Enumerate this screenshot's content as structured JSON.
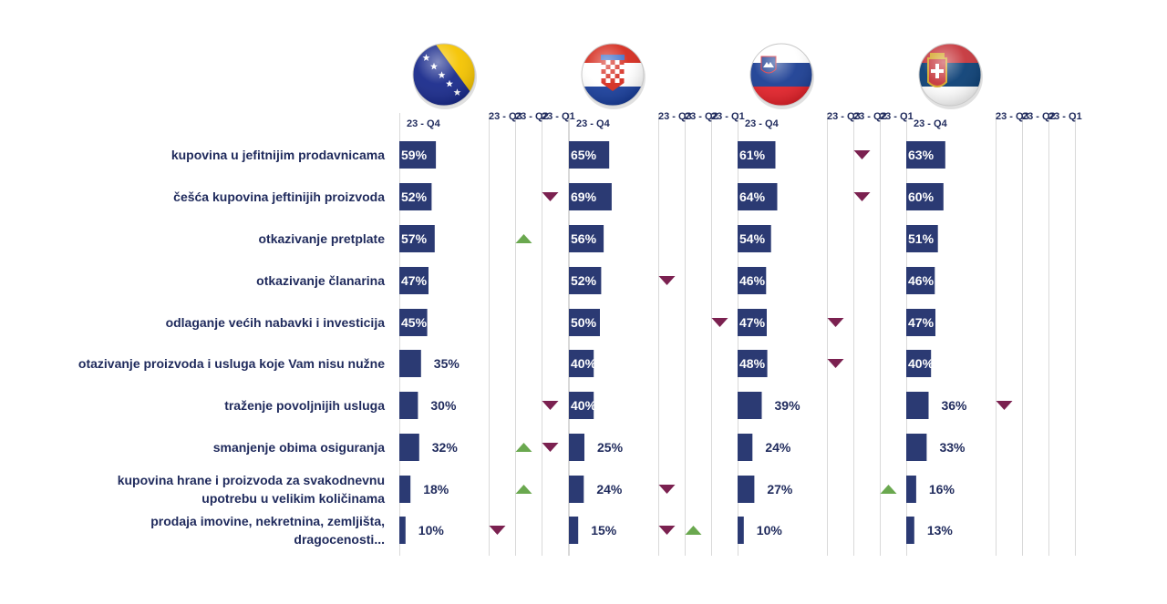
{
  "colors": {
    "bar": "#2b3a73",
    "label": "#1f2a5c",
    "up": "#6aa84f",
    "down": "#7b2150",
    "gridline": "#d9d9d9"
  },
  "chart_data": {
    "type": "bar",
    "orientation": "horizontal",
    "unit": "%",
    "categories": [
      "kupovina u jefitnijim prodavnicama",
      "češća kupovina jeftinijih proizvoda",
      "otkazivanje pretplate",
      "otkazivanje članarina",
      "odlaganje većih nabavki i investicija",
      "otazivanje proizvoda i usluga koje Vam nisu nužne",
      "traženje povoljnijih usluga",
      "smanjenje obima osiguranja",
      "kupovina hrane i proizvoda za svakodnevnu upotrebu u velikim količinama",
      "prodaja imovine, nekretnina, zemljišta, dragocenosti..."
    ],
    "category_lines": [
      [
        "kupovina u jefitnijim prodavnicama"
      ],
      [
        "češća kupovina jeftinijih proizvoda"
      ],
      [
        "otkazivanje pretplate"
      ],
      [
        "otkazivanje članarina"
      ],
      [
        "odlaganje većih nabavki i investicija"
      ],
      [
        "otazivanje proizvoda i usluga koje Vam nisu nužne"
      ],
      [
        "traženje povoljnijih usluga"
      ],
      [
        "smanjenje obima osiguranja"
      ],
      [
        "kupovina hrane i proizvoda za svakodnevnu",
        "upotrebu u velikim količinama"
      ],
      [
        "prodaja imovine, nekretnina, zemljišta,",
        "dragocenosti..."
      ]
    ],
    "comparison_headers": [
      "23 - Q3",
      "23 - Q2",
      "23 - Q1"
    ],
    "panels": [
      {
        "flag": "bosnia-herzegovina-flag",
        "header": "23 - Q4",
        "values": [
          59,
          52,
          57,
          47,
          45,
          35,
          30,
          32,
          18,
          10
        ],
        "arrows": [
          {
            "row": 1,
            "col": 2,
            "dir": "down"
          },
          {
            "row": 2,
            "col": 1,
            "dir": "up"
          },
          {
            "row": 6,
            "col": 2,
            "dir": "down"
          },
          {
            "row": 7,
            "col": 1,
            "dir": "up"
          },
          {
            "row": 7,
            "col": 2,
            "dir": "down"
          },
          {
            "row": 8,
            "col": 1,
            "dir": "up"
          },
          {
            "row": 9,
            "col": 0,
            "dir": "down"
          }
        ]
      },
      {
        "flag": "croatia-flag",
        "header": "23 - Q4",
        "values": [
          65,
          69,
          56,
          52,
          50,
          40,
          40,
          25,
          24,
          15
        ],
        "arrows": [
          {
            "row": 3,
            "col": 0,
            "dir": "down"
          },
          {
            "row": 4,
            "col": 2,
            "dir": "down"
          },
          {
            "row": 8,
            "col": 0,
            "dir": "down"
          },
          {
            "row": 9,
            "col": 0,
            "dir": "down"
          },
          {
            "row": 9,
            "col": 1,
            "dir": "up"
          }
        ]
      },
      {
        "flag": "slovenia-flag",
        "header": "23 - Q4",
        "values": [
          61,
          64,
          54,
          46,
          47,
          48,
          39,
          24,
          27,
          10
        ],
        "arrows": [
          {
            "row": 0,
            "col": 1,
            "dir": "down"
          },
          {
            "row": 1,
            "col": 1,
            "dir": "down"
          },
          {
            "row": 4,
            "col": 0,
            "dir": "down"
          },
          {
            "row": 5,
            "col": 0,
            "dir": "down"
          },
          {
            "row": 8,
            "col": 2,
            "dir": "up"
          }
        ]
      },
      {
        "flag": "serbia-flag",
        "header": "23 - Q4",
        "values": [
          63,
          60,
          51,
          46,
          47,
          40,
          36,
          33,
          16,
          13
        ],
        "arrows": [
          {
            "row": 6,
            "col": 0,
            "dir": "down"
          }
        ]
      }
    ]
  }
}
